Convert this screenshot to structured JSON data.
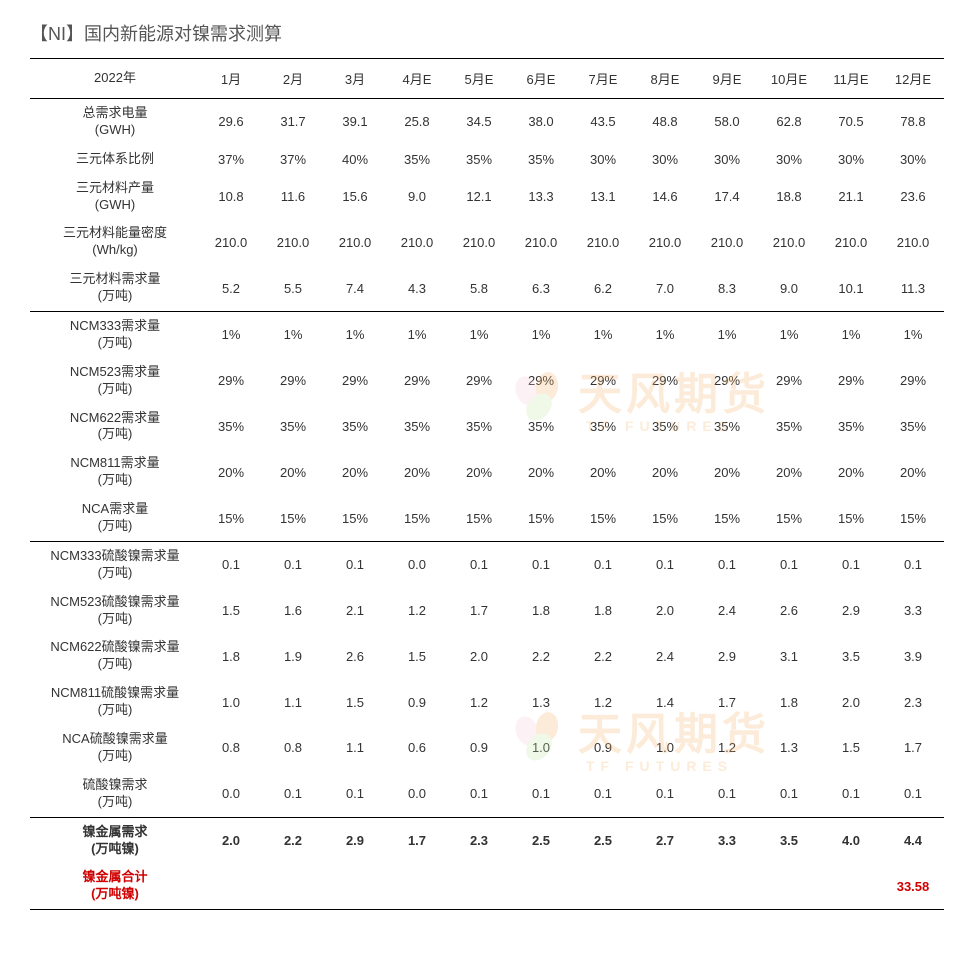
{
  "title": "【NI】国内新能源对镍需求测算",
  "yearLabel": "2022年",
  "months": [
    "1月",
    "2月",
    "3月",
    "4月E",
    "5月E",
    "6月E",
    "7月E",
    "8月E",
    "9月E",
    "10月E",
    "11月E",
    "12月E"
  ],
  "sections": [
    {
      "rows": [
        {
          "label": "总需求电量",
          "sub": "(GWH)",
          "vals": [
            "29.6",
            "31.7",
            "39.1",
            "25.8",
            "34.5",
            "38.0",
            "43.5",
            "48.8",
            "58.0",
            "62.8",
            "70.5",
            "78.8"
          ]
        },
        {
          "label": "三元体系比例",
          "sub": "",
          "vals": [
            "37%",
            "37%",
            "40%",
            "35%",
            "35%",
            "35%",
            "30%",
            "30%",
            "30%",
            "30%",
            "30%",
            "30%"
          ]
        },
        {
          "label": "三元材料产量",
          "sub": "(GWH)",
          "vals": [
            "10.8",
            "11.6",
            "15.6",
            "9.0",
            "12.1",
            "13.3",
            "13.1",
            "14.6",
            "17.4",
            "18.8",
            "21.1",
            "23.6"
          ]
        },
        {
          "label": "三元材料能量密度",
          "sub": "(Wh/kg)",
          "vals": [
            "210.0",
            "210.0",
            "210.0",
            "210.0",
            "210.0",
            "210.0",
            "210.0",
            "210.0",
            "210.0",
            "210.0",
            "210.0",
            "210.0"
          ]
        },
        {
          "label": "三元材料需求量",
          "sub": "(万吨)",
          "vals": [
            "5.2",
            "5.5",
            "7.4",
            "4.3",
            "5.8",
            "6.3",
            "6.2",
            "7.0",
            "8.3",
            "9.0",
            "10.1",
            "11.3"
          ]
        }
      ],
      "border": "thick"
    },
    {
      "rows": [
        {
          "label": "NCM333需求量",
          "sub": "(万吨)",
          "vals": [
            "1%",
            "1%",
            "1%",
            "1%",
            "1%",
            "1%",
            "1%",
            "1%",
            "1%",
            "1%",
            "1%",
            "1%"
          ]
        },
        {
          "label": "NCM523需求量",
          "sub": "(万吨)",
          "vals": [
            "29%",
            "29%",
            "29%",
            "29%",
            "29%",
            "29%",
            "29%",
            "29%",
            "29%",
            "29%",
            "29%",
            "29%"
          ]
        },
        {
          "label": "NCM622需求量",
          "sub": "(万吨)",
          "vals": [
            "35%",
            "35%",
            "35%",
            "35%",
            "35%",
            "35%",
            "35%",
            "35%",
            "35%",
            "35%",
            "35%",
            "35%"
          ]
        },
        {
          "label": "NCM811需求量",
          "sub": "(万吨)",
          "vals": [
            "20%",
            "20%",
            "20%",
            "20%",
            "20%",
            "20%",
            "20%",
            "20%",
            "20%",
            "20%",
            "20%",
            "20%"
          ]
        },
        {
          "label": "NCA需求量",
          "sub": "(万吨)",
          "vals": [
            "15%",
            "15%",
            "15%",
            "15%",
            "15%",
            "15%",
            "15%",
            "15%",
            "15%",
            "15%",
            "15%",
            "15%"
          ]
        }
      ],
      "border": "thin"
    },
    {
      "rows": [
        {
          "label": "NCM333硫酸镍需求量",
          "sub": "(万吨)",
          "vals": [
            "0.1",
            "0.1",
            "0.1",
            "0.0",
            "0.1",
            "0.1",
            "0.1",
            "0.1",
            "0.1",
            "0.1",
            "0.1",
            "0.1"
          ]
        },
        {
          "label": "NCM523硫酸镍需求量",
          "sub": "(万吨)",
          "vals": [
            "1.5",
            "1.6",
            "2.1",
            "1.2",
            "1.7",
            "1.8",
            "1.8",
            "2.0",
            "2.4",
            "2.6",
            "2.9",
            "3.3"
          ]
        },
        {
          "label": "NCM622硫酸镍需求量",
          "sub": "(万吨)",
          "vals": [
            "1.8",
            "1.9",
            "2.6",
            "1.5",
            "2.0",
            "2.2",
            "2.2",
            "2.4",
            "2.9",
            "3.1",
            "3.5",
            "3.9"
          ]
        },
        {
          "label": "NCM811硫酸镍需求量",
          "sub": "(万吨)",
          "vals": [
            "1.0",
            "1.1",
            "1.5",
            "0.9",
            "1.2",
            "1.3",
            "1.2",
            "1.4",
            "1.7",
            "1.8",
            "2.0",
            "2.3"
          ]
        },
        {
          "label": "NCA硫酸镍需求量",
          "sub": "(万吨)",
          "vals": [
            "0.8",
            "0.8",
            "1.1",
            "0.6",
            "0.9",
            "1.0",
            "0.9",
            "1.0",
            "1.2",
            "1.3",
            "1.5",
            "1.7"
          ]
        },
        {
          "label": "硫酸镍需求",
          "sub": "(万吨)",
          "vals": [
            "0.0",
            "0.1",
            "0.1",
            "0.0",
            "0.1",
            "0.1",
            "0.1",
            "0.1",
            "0.1",
            "0.1",
            "0.1",
            "0.1"
          ]
        }
      ],
      "border": "thick"
    },
    {
      "rows": [
        {
          "label": "镍金属需求",
          "sub": "(万吨镍)",
          "vals": [
            "2.0",
            "2.2",
            "2.9",
            "1.7",
            "2.3",
            "2.5",
            "2.5",
            "2.7",
            "3.3",
            "3.5",
            "4.0",
            "4.4"
          ],
          "bold": true
        },
        {
          "label": "镍金属合计",
          "sub": "(万吨镍)",
          "vals": [
            "",
            "",
            "",
            "",
            "",
            "",
            "",
            "",
            "",
            "",
            "",
            "33.58"
          ],
          "red": true
        }
      ],
      "border": "thick"
    }
  ],
  "watermark": {
    "text": "天风期货",
    "sub": "TF FUTURES"
  },
  "colors": {
    "text": "#333333",
    "red": "#d00000",
    "wm": "#f7b368",
    "petal_pink": "#f7c9d4",
    "petal_orange": "#f7b368",
    "petal_green": "#c7e6a8"
  }
}
